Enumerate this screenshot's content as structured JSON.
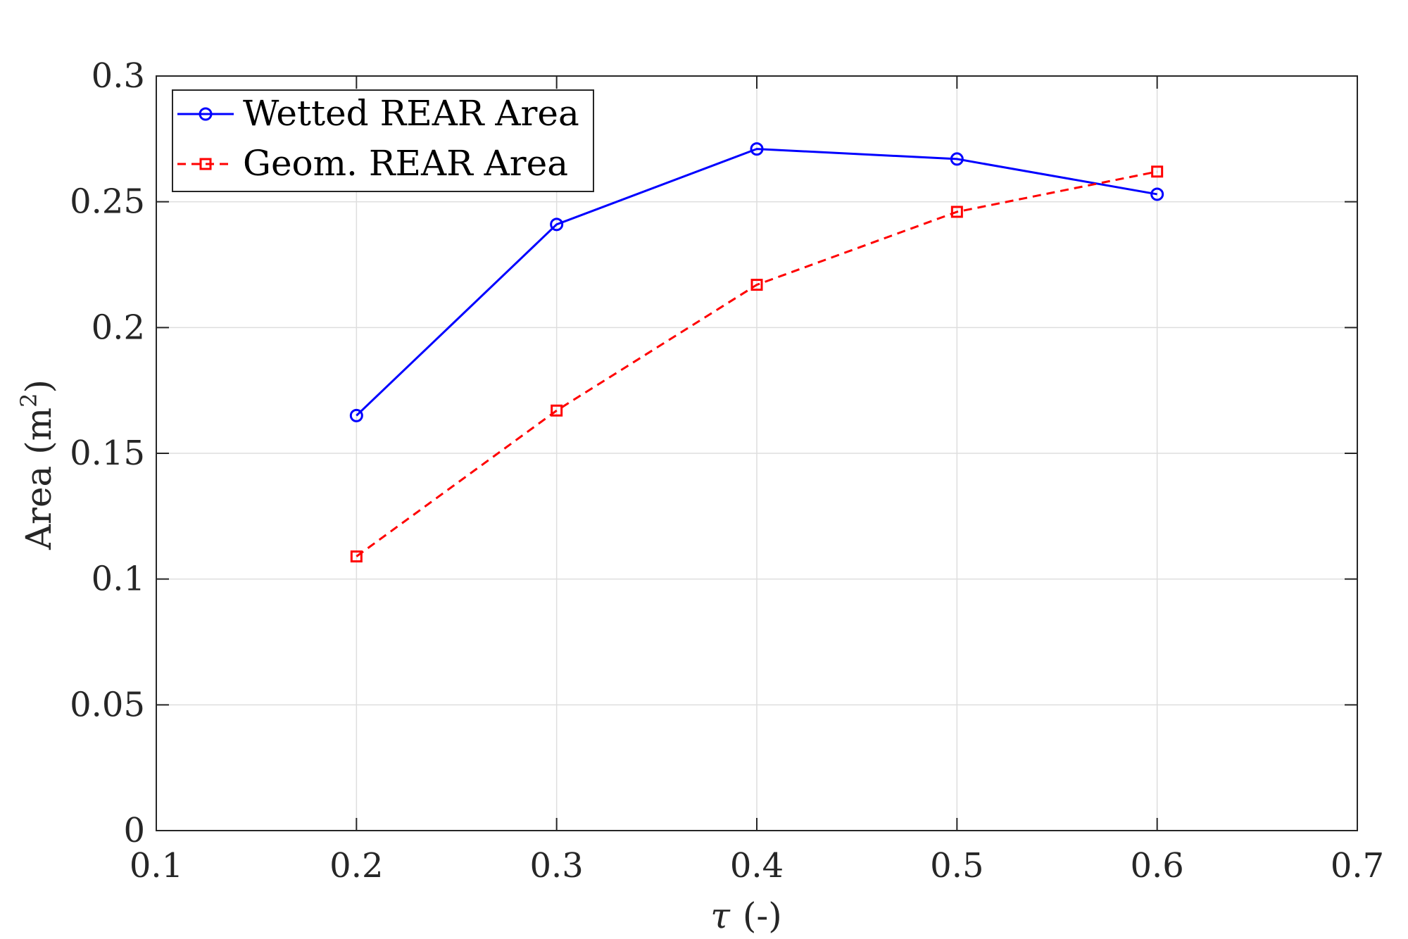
{
  "chart_data": {
    "type": "line",
    "x": [
      0.2,
      0.3,
      0.4,
      0.5,
      0.6
    ],
    "series": [
      {
        "name": "Wetted REAR Area",
        "values": [
          0.165,
          0.241,
          0.271,
          0.267,
          0.253
        ],
        "color": "#0000ff",
        "line_style": "solid",
        "marker": "circle"
      },
      {
        "name": "Geom. REAR Area",
        "values": [
          0.109,
          0.167,
          0.217,
          0.246,
          0.262
        ],
        "color": "#ff0000",
        "line_style": "dashed",
        "marker": "square"
      }
    ],
    "xlabel_symbol": "τ",
    "xlabel_unit": "(-)",
    "ylabel": "Area (m",
    "ylabel_sup": "2",
    "ylabel_close": ")",
    "xlim": [
      0.1,
      0.7
    ],
    "ylim": [
      0,
      0.3
    ],
    "xticks": [
      "0.1",
      "0.2",
      "0.3",
      "0.4",
      "0.5",
      "0.6",
      "0.7"
    ],
    "yticks": [
      "0",
      "0.05",
      "0.1",
      "0.15",
      "0.2",
      "0.25",
      "0.3"
    ],
    "grid": true,
    "legend_position": "top-left"
  }
}
